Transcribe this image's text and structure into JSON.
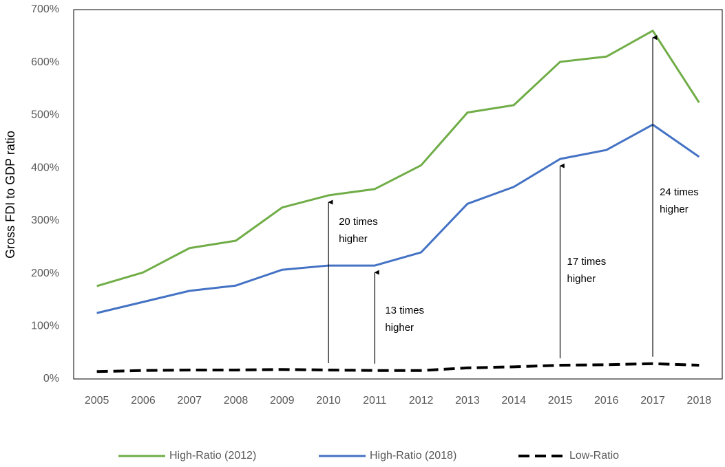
{
  "chart_data": {
    "type": "line",
    "y_label": "Gross FDI to GDP ratio",
    "categories": [
      "2005",
      "2006",
      "2007",
      "2008",
      "2009",
      "2010",
      "2011",
      "2012",
      "2013",
      "2014",
      "2015",
      "2016",
      "2017",
      "2018"
    ],
    "series": [
      {
        "name": "High-Ratio (2012)",
        "color": "#70ad47",
        "style": "solid",
        "values": [
          176,
          202,
          248,
          262,
          325,
          348,
          360,
          405,
          505,
          519,
          601,
          611,
          660,
          524
        ]
      },
      {
        "name": "High-Ratio (2018)",
        "color": "#4472c4",
        "style": "solid",
        "values": [
          125,
          146,
          167,
          177,
          207,
          215,
          215,
          240,
          332,
          364,
          417,
          434,
          482,
          421
        ]
      },
      {
        "name": "Low-Ratio",
        "color": "#000000",
        "style": "dashed",
        "values": [
          14,
          16,
          17,
          17,
          18,
          17,
          16,
          16,
          21,
          23,
          26,
          27,
          29,
          26
        ]
      }
    ],
    "ylim": [
      0,
      700
    ],
    "yticks": [
      {
        "value": 0,
        "label": "0%"
      },
      {
        "value": 100,
        "label": "100%"
      },
      {
        "value": 200,
        "label": "200%"
      },
      {
        "value": 300,
        "label": "300%"
      },
      {
        "value": 400,
        "label": "400%"
      },
      {
        "value": 500,
        "label": "500%"
      },
      {
        "value": 600,
        "label": "600%"
      },
      {
        "value": 700,
        "label": "700%"
      }
    ],
    "annotations": [
      {
        "x": "2010",
        "text": [
          "20 times",
          "higher"
        ]
      },
      {
        "x": "2011",
        "text": [
          "13 times",
          "higher"
        ]
      },
      {
        "x": "2015",
        "text": [
          "17 times",
          "higher"
        ]
      },
      {
        "x": "2017",
        "text": [
          "24 times",
          "higher"
        ]
      }
    ],
    "legend": "bottom"
  }
}
